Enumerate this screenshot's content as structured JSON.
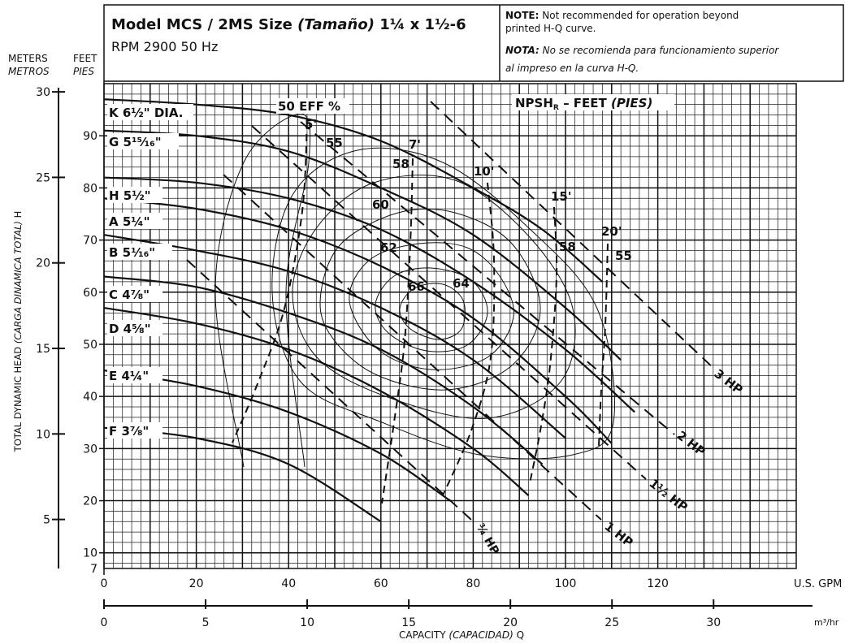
{
  "header": {
    "model_prefix": "Model MCS / 2MS Size ",
    "size_word": "(Tamaño)",
    "size_value": " 1¼ x 1½-6",
    "rpm_line": "RPM 2900 50 Hz",
    "note_label": "NOTE:",
    "note_text": " Not recommended for operation beyond",
    "note_text2": "printed H-Q curve.",
    "nota_label": "NOTA:",
    "nota_text": " No se recomienda para funcionamiento superior",
    "nota_text2": "al impreso en la curva H-Q."
  },
  "axes_titles": {
    "meters": "METERS",
    "metros": "METROS",
    "feet": "FEET",
    "pies": "PIES",
    "y_title_part1": "TOTAL DYNAMIC HEAD ",
    "y_title_part2": "(CARGA DINAMICA TOTAL)",
    "y_title_part3": " H",
    "x_title_part1": "CAPACITY ",
    "x_title_part2": "(CAPACIDAD)",
    "x_title_part3": " Q",
    "gpm_unit": "U.S. GPM",
    "m3_unit": "m³/hr"
  },
  "chart_data": {
    "type": "line",
    "title": "Model MCS / 2MS Size (Tamaño) 1¼ x 1½-6",
    "subtitle": "RPM 2900 50 Hz",
    "xlabel": "CAPACITY (CAPACIDAD) Q",
    "ylabel": "TOTAL DYNAMIC HEAD (CARGA DINAMICA TOTAL) H",
    "x_unit": "U.S. GPM",
    "y_unit": "FEET",
    "xlim": [
      0,
      150
    ],
    "ylim": [
      7,
      100
    ],
    "grid": true,
    "x_ticks": [
      0,
      20,
      40,
      60,
      80,
      100,
      120
    ],
    "y_ticks_feet": [
      10,
      20,
      30,
      40,
      50,
      60,
      70,
      80,
      90
    ],
    "y_ticks_meters": [
      5,
      10,
      15,
      20,
      25,
      30
    ],
    "x_ticks_m3hr": [
      0,
      5,
      10,
      15,
      20,
      25,
      30
    ],
    "series": [
      {
        "name": "K 6½\" DIA.",
        "points": [
          [
            0,
            97
          ],
          [
            20,
            96
          ],
          [
            40,
            94
          ],
          [
            60,
            89
          ],
          [
            80,
            80
          ],
          [
            95,
            72
          ],
          [
            108,
            62
          ]
        ]
      },
      {
        "name": "G 5¹⁵⁄₁₆\"",
        "points": [
          [
            0,
            91
          ],
          [
            20,
            90
          ],
          [
            40,
            87
          ],
          [
            60,
            80
          ],
          [
            80,
            71
          ],
          [
            100,
            57
          ],
          [
            112,
            47
          ]
        ]
      },
      {
        "name": "H 5½\"",
        "points": [
          [
            0,
            82
          ],
          [
            20,
            81
          ],
          [
            40,
            78
          ],
          [
            60,
            72
          ],
          [
            80,
            62
          ],
          [
            100,
            49
          ],
          [
            115,
            37
          ]
        ]
      },
      {
        "name": "A 5¼\"",
        "points": [
          [
            0,
            78
          ],
          [
            20,
            76
          ],
          [
            40,
            72
          ],
          [
            60,
            65
          ],
          [
            80,
            55
          ],
          [
            100,
            40
          ],
          [
            110,
            31
          ]
        ]
      },
      {
        "name": "B 5¹⁄₁₆\"",
        "points": [
          [
            0,
            71
          ],
          [
            20,
            68
          ],
          [
            40,
            64
          ],
          [
            60,
            57
          ],
          [
            80,
            47
          ],
          [
            100,
            32
          ]
        ]
      },
      {
        "name": "C 4⁷⁄₈\"",
        "points": [
          [
            0,
            63
          ],
          [
            20,
            61
          ],
          [
            40,
            56
          ],
          [
            60,
            49
          ],
          [
            80,
            38
          ],
          [
            95,
            27
          ]
        ]
      },
      {
        "name": "D 4⁵⁄₈\"",
        "points": [
          [
            0,
            57
          ],
          [
            20,
            54
          ],
          [
            40,
            49
          ],
          [
            60,
            41
          ],
          [
            80,
            30
          ],
          [
            92,
            21
          ]
        ]
      },
      {
        "name": "E 4¼\"",
        "points": [
          [
            0,
            45
          ],
          [
            20,
            42
          ],
          [
            40,
            37
          ],
          [
            60,
            29
          ],
          [
            75,
            20
          ]
        ]
      },
      {
        "name": "F 3⁷⁄₈\"",
        "points": [
          [
            0,
            34
          ],
          [
            20,
            32
          ],
          [
            40,
            27
          ],
          [
            60,
            16
          ]
        ]
      }
    ],
    "efficiency_contours_percent": [
      50,
      55,
      58,
      60,
      62,
      64,
      66
    ],
    "npshr_feet": [
      5,
      7,
      10,
      15,
      20
    ],
    "horsepower_lines": [
      "3 HP",
      "2 HP",
      "1½ HP",
      "1 HP",
      "¾ HP"
    ]
  },
  "labels": {
    "curves": [
      "K 6½\" DIA.",
      "G 5¹⁵⁄₁₆\"",
      "H 5½\"",
      "A 5¼\"",
      "B 5¹⁄₁₆\"",
      "C 4⁷⁄₈\"",
      "D 4⁵⁄₈\"",
      "E 4¼\"",
      "F 3⁷⁄₈\""
    ],
    "eff_title": "50 EFF %",
    "eff": [
      "55",
      "58",
      "60",
      "62",
      "66",
      "64",
      "58",
      "55"
    ],
    "npsh_title_main": "NPSH",
    "npsh_title_sub": "R",
    "npsh_title_rest": " – FEET ",
    "npsh_title_pies": "(PIES)",
    "npsh": [
      "5'",
      "7'",
      "10'",
      "15'",
      "20'"
    ],
    "hp": [
      "3 HP",
      "2 HP",
      "1½ HP",
      "1 HP",
      "¾ HP"
    ]
  }
}
